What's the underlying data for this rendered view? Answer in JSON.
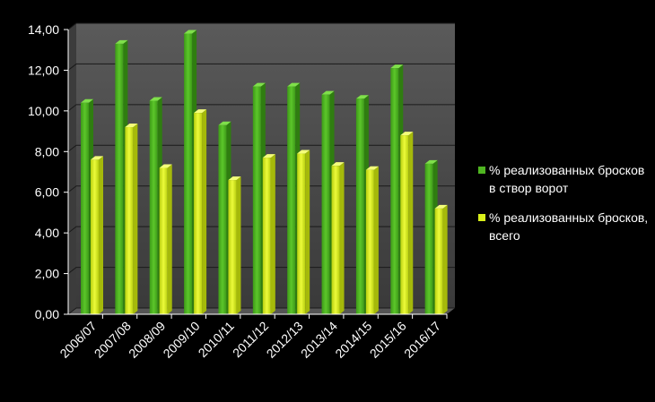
{
  "chart_data": {
    "type": "bar",
    "categories": [
      "2006/07",
      "2007/08",
      "2008/09",
      "2009/10",
      "2010/11",
      "2011/12",
      "2012/13",
      "2013/14",
      "2014/15",
      "2015/16",
      "2016/17"
    ],
    "series": [
      {
        "name": "% реализованных бросков в створ ворот",
        "color": "#4fb521",
        "values": [
          10.4,
          13.3,
          10.5,
          13.8,
          9.3,
          11.2,
          11.2,
          10.8,
          10.6,
          12.1,
          7.4
        ]
      },
      {
        "name": "% реализованных бросков, всего",
        "color": "#d9f01a",
        "values": [
          7.6,
          9.2,
          7.2,
          9.9,
          6.6,
          7.7,
          7.9,
          7.3,
          7.1,
          8.8,
          5.2
        ]
      }
    ],
    "y_ticks": [
      "0,00",
      "2,00",
      "4,00",
      "6,00",
      "8,00",
      "10,00",
      "12,00",
      "14,00"
    ],
    "ylim": [
      0,
      14
    ],
    "grid": true,
    "legend_position": "right"
  }
}
